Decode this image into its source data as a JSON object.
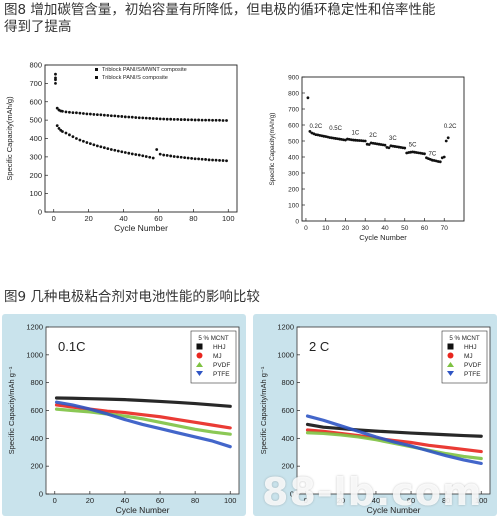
{
  "captions": {
    "fig8_line1": "图8  增加碳管含量，初始容量有所降低，但电极的循环稳定性和倍率性能",
    "fig8_line2": "得到了提高",
    "fig9": "图9  几种电极粘合剂对电池性能的影响比较"
  },
  "watermark": "88-lb.com",
  "colors": {
    "panel_bg": "#c9e3ec",
    "hhj": "#111111",
    "mj": "#e8261f",
    "pvdf": "#7ec242",
    "ptfe": "#2f55c4"
  },
  "chart_data": [
    {
      "id": "fig8a",
      "type": "scatter",
      "title": "",
      "xlabel": "Cycle Number",
      "ylabel": "Specific Capacity(mAh/g)",
      "xlim": [
        -5,
        105
      ],
      "ylim": [
        0,
        800
      ],
      "xticks": [
        0,
        20,
        40,
        60,
        80,
        100
      ],
      "yticks": [
        0,
        100,
        200,
        300,
        400,
        500,
        600,
        700,
        800
      ],
      "legend_position": "top-right",
      "series": [
        {
          "name": "Triblock PANI/S/MWNT composite",
          "x": [
            1,
            1,
            2,
            3,
            4,
            5,
            7,
            9,
            11,
            13,
            15,
            17,
            19,
            21,
            23,
            25,
            27,
            29,
            31,
            33,
            35,
            37,
            39,
            41,
            43,
            45,
            47,
            49,
            51,
            53,
            55,
            57,
            59,
            61,
            63,
            65,
            67,
            69,
            71,
            73,
            75,
            77,
            79,
            81,
            83,
            85,
            87,
            89,
            91,
            93,
            95,
            97,
            99
          ],
          "y": [
            730,
            700,
            565,
            555,
            550,
            548,
            545,
            543,
            541,
            540,
            538,
            536,
            534,
            533,
            531,
            530,
            529,
            527,
            526,
            524,
            523,
            521,
            520,
            518,
            517,
            516,
            514,
            513,
            512,
            511,
            510,
            509,
            508,
            507,
            506,
            505,
            505,
            504,
            504,
            503,
            503,
            502,
            502,
            501,
            501,
            500,
            500,
            500,
            499,
            499,
            499,
            498,
            498
          ]
        },
        {
          "name": "Triblock PANI/S composite",
          "x": [
            1,
            1,
            2,
            3,
            4,
            5,
            7,
            9,
            11,
            13,
            15,
            17,
            19,
            21,
            23,
            25,
            27,
            29,
            31,
            33,
            35,
            37,
            39,
            41,
            43,
            45,
            47,
            49,
            51,
            53,
            55,
            57,
            59,
            61,
            63,
            65,
            67,
            69,
            71,
            73,
            75,
            77,
            79,
            81,
            83,
            85,
            87,
            89,
            91,
            93,
            95,
            97,
            99
          ],
          "y": [
            750,
            720,
            470,
            455,
            445,
            438,
            430,
            420,
            410,
            400,
            392,
            385,
            378,
            372,
            366,
            360,
            355,
            350,
            345,
            340,
            336,
            332,
            328,
            324,
            320,
            316,
            313,
            310,
            306,
            302,
            298,
            294,
            340,
            315,
            310,
            308,
            305,
            302,
            300,
            298,
            296,
            294,
            292,
            290,
            289,
            287,
            286,
            284,
            283,
            282,
            281,
            280,
            279
          ]
        }
      ]
    },
    {
      "id": "fig8b",
      "type": "scatter",
      "title": "",
      "xlabel": "Cycle Number",
      "ylabel": "Specific Capacity(mAh/g)",
      "xlim": [
        -2,
        80
      ],
      "ylim": [
        0,
        900
      ],
      "xticks": [
        0,
        10,
        20,
        30,
        40,
        50,
        60,
        70
      ],
      "yticks": [
        0,
        100,
        200,
        300,
        400,
        500,
        600,
        700,
        800,
        900
      ],
      "rate_labels": [
        {
          "text": "0.2C",
          "x": 5,
          "y": 580
        },
        {
          "text": "0.5C",
          "x": 15,
          "y": 570
        },
        {
          "text": "1C",
          "x": 25,
          "y": 540
        },
        {
          "text": "2C",
          "x": 34,
          "y": 525
        },
        {
          "text": "3C",
          "x": 44,
          "y": 505
        },
        {
          "text": "5C",
          "x": 54,
          "y": 465
        },
        {
          "text": "7C",
          "x": 64,
          "y": 410
        },
        {
          "text": "0.2C",
          "x": 73,
          "y": 580
        }
      ],
      "series": [
        {
          "name": "",
          "x": [
            1,
            2,
            3,
            4,
            5,
            6,
            7,
            8,
            9,
            10,
            11,
            12,
            13,
            14,
            15,
            16,
            17,
            18,
            19,
            20,
            21,
            22,
            23,
            24,
            25,
            26,
            27,
            28,
            29,
            30,
            31,
            32,
            33,
            34,
            35,
            36,
            37,
            38,
            39,
            40,
            41,
            42,
            43,
            44,
            45,
            46,
            47,
            48,
            49,
            50,
            51,
            52,
            53,
            54,
            55,
            56,
            57,
            58,
            59,
            60,
            61,
            62,
            63,
            64,
            65,
            66,
            67,
            68,
            69,
            70,
            71,
            72
          ],
          "y": [
            770,
            560,
            550,
            545,
            540,
            538,
            535,
            533,
            530,
            528,
            525,
            522,
            520,
            518,
            516,
            514,
            512,
            510,
            508,
            506,
            512,
            510,
            508,
            506,
            505,
            504,
            503,
            502,
            501,
            500,
            480,
            478,
            488,
            486,
            484,
            482,
            480,
            478,
            476,
            474,
            460,
            458,
            470,
            468,
            466,
            464,
            462,
            460,
            458,
            456,
            425,
            428,
            430,
            432,
            430,
            428,
            426,
            424,
            422,
            420,
            395,
            390,
            385,
            380,
            378,
            375,
            372,
            370,
            395,
            400,
            500,
            520
          ]
        }
      ]
    },
    {
      "id": "fig9a",
      "type": "line",
      "title": "",
      "panel_label": "0.1C",
      "legend_title": "5 % MCNT",
      "legend_position": "top-right",
      "xlabel": "Cycle Number",
      "ylabel": "Specific Capacity/mAh g⁻¹",
      "xlim": [
        -5,
        105
      ],
      "ylim": [
        0,
        1200
      ],
      "xticks": [
        0,
        20,
        40,
        60,
        80,
        100
      ],
      "yticks": [
        0,
        200,
        400,
        600,
        800,
        1000,
        1200
      ],
      "x": [
        1,
        10,
        20,
        30,
        40,
        50,
        60,
        70,
        80,
        90,
        100
      ],
      "series": [
        {
          "name": "HHJ",
          "values": [
            690,
            688,
            685,
            682,
            678,
            672,
            665,
            658,
            650,
            640,
            630
          ]
        },
        {
          "name": "MJ",
          "values": [
            640,
            625,
            610,
            595,
            585,
            570,
            555,
            535,
            515,
            495,
            475
          ]
        },
        {
          "name": "PVDF",
          "values": [
            610,
            600,
            590,
            575,
            560,
            540,
            515,
            490,
            465,
            445,
            430
          ]
        },
        {
          "name": "PTFE",
          "values": [
            660,
            640,
            610,
            575,
            535,
            500,
            470,
            440,
            410,
            380,
            340
          ]
        }
      ]
    },
    {
      "id": "fig9b",
      "type": "line",
      "title": "",
      "panel_label": "2 C",
      "legend_title": "5 % MCNT",
      "legend_position": "top-right",
      "xlabel": "Cycle Number",
      "ylabel": "Specific Capacity/mAh g⁻¹",
      "xlim": [
        -5,
        105
      ],
      "ylim": [
        0,
        1200
      ],
      "xticks": [
        0,
        20,
        40,
        60,
        80,
        100
      ],
      "yticks": [
        0,
        200,
        400,
        600,
        800,
        1000,
        1200
      ],
      "x": [
        1,
        10,
        20,
        30,
        40,
        50,
        60,
        70,
        80,
        90,
        100
      ],
      "series": [
        {
          "name": "HHJ",
          "values": [
            500,
            480,
            470,
            460,
            452,
            445,
            438,
            432,
            426,
            420,
            415
          ]
        },
        {
          "name": "MJ",
          "values": [
            460,
            450,
            435,
            420,
            400,
            385,
            370,
            350,
            335,
            320,
            305
          ]
        },
        {
          "name": "PVDF",
          "values": [
            440,
            435,
            425,
            410,
            390,
            365,
            340,
            315,
            290,
            270,
            255
          ]
        },
        {
          "name": "PTFE",
          "values": [
            560,
            530,
            490,
            450,
            410,
            375,
            345,
            310,
            275,
            245,
            220
          ]
        }
      ]
    }
  ]
}
